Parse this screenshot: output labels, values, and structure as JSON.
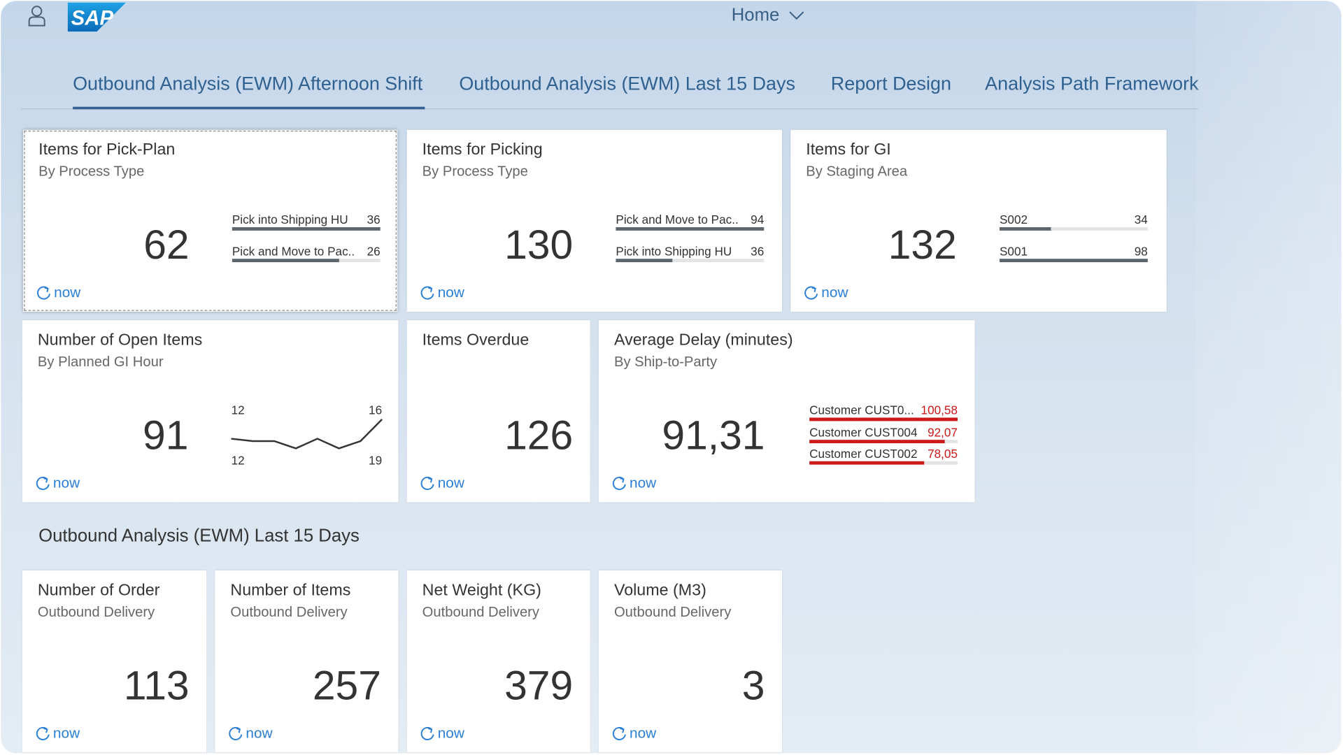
{
  "header": {
    "logo": "SAP",
    "title": "Home"
  },
  "tabs": [
    "Outbound Analysis (EWM) Afternoon Shift",
    "Outbound Analysis (EWM) Last 15 Days",
    "Report Design",
    "Analysis Path Framework"
  ],
  "tiles": [
    {
      "title": "Items for Pick-Plan",
      "subtitle": "By Process Type",
      "value": 62,
      "footer": "now",
      "chart": {
        "type": "comparison",
        "color": "#5e666d",
        "value_color": "#333333",
        "items": [
          {
            "label": "Pick into Shipping HU",
            "value": 36
          },
          {
            "label": "Pick and Move to Pac...",
            "value": 26
          }
        ]
      }
    },
    {
      "title": "Items for Picking",
      "subtitle": "By Process Type",
      "value": 130,
      "footer": "now",
      "chart": {
        "type": "comparison",
        "color": "#5e666d",
        "value_color": "#333333",
        "items": [
          {
            "label": "Pick and Move to Pac...",
            "value": 94
          },
          {
            "label": "Pick into Shipping HU",
            "value": 36
          }
        ]
      }
    },
    {
      "title": "Items for GI",
      "subtitle": "By Staging Area",
      "value": 132,
      "footer": "now",
      "chart": {
        "type": "comparison",
        "color": "#5e666d",
        "value_color": "#333333",
        "items": [
          {
            "label": "S002",
            "value": 34
          },
          {
            "label": "S001",
            "value": 98
          }
        ]
      }
    },
    {
      "title": "Number of Open Items",
      "subtitle": "By Planned GI Hour",
      "value": 91,
      "footer": "now",
      "chart": {
        "type": "line",
        "color": "#333333",
        "values": [
          12,
          11.5,
          11.5,
          10,
          12,
          10,
          11.5,
          16
        ],
        "x_start": 12,
        "x_end": 19
      }
    },
    {
      "title": "Items Overdue",
      "value": 126,
      "footer": "now"
    },
    {
      "title": "Average Delay (minutes)",
      "subtitle": "By Ship-to-Party",
      "value": "91,31",
      "footer": "now",
      "chart": {
        "type": "comparison",
        "color": "#cc1919",
        "value_color": "#cc1919",
        "items": [
          {
            "label": "Customer CUST0...",
            "value": 100.58,
            "value_label": "100,58"
          },
          {
            "label": "Customer CUST004",
            "value": 92.07,
            "value_label": "92,07"
          },
          {
            "label": "Customer CUST002",
            "value": 78.05,
            "value_label": "78,05"
          }
        ]
      }
    }
  ],
  "section": {
    "title": "Outbound Analysis (EWM) Last 15 Days",
    "tiles": [
      {
        "title": "Number of Order",
        "subtitle": "Outbound Delivery",
        "value": 113,
        "footer": "now"
      },
      {
        "title": "Number of Items",
        "subtitle": "Outbound Delivery",
        "value": 257,
        "footer": "now"
      },
      {
        "title": "Net Weight (KG)",
        "subtitle": "Outbound Delivery",
        "value": 379,
        "footer": "now"
      },
      {
        "title": "Volume (M3)",
        "subtitle": "Outbound Delivery",
        "value": 3,
        "footer": "now"
      }
    ]
  }
}
